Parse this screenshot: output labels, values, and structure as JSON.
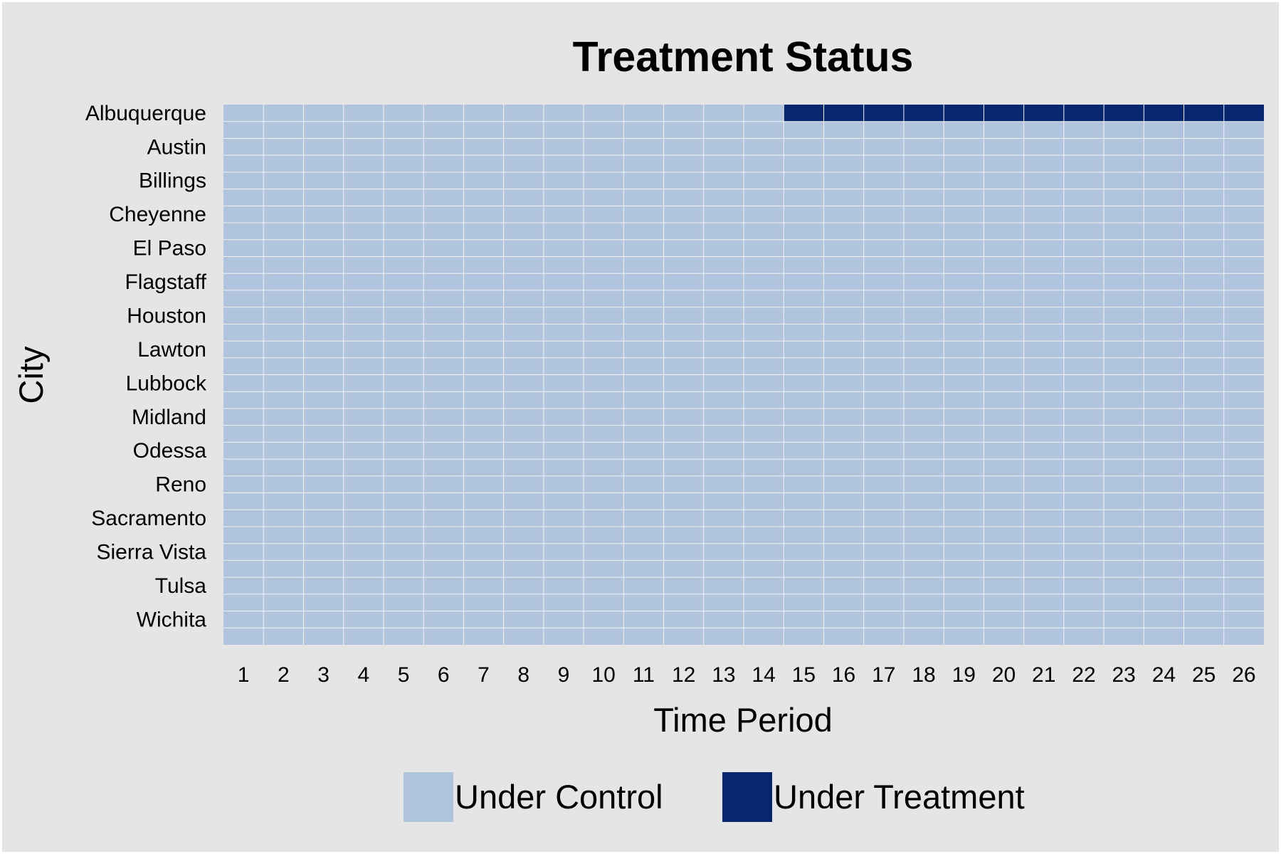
{
  "chart_data": {
    "type": "heatmap",
    "title": "Treatment Status",
    "xlabel": "Time Period",
    "ylabel": "City",
    "x": [
      1,
      2,
      3,
      4,
      5,
      6,
      7,
      8,
      9,
      10,
      11,
      12,
      13,
      14,
      15,
      16,
      17,
      18,
      19,
      20,
      21,
      22,
      23,
      24,
      25,
      26
    ],
    "rows": [
      {
        "label": "Albuquerque",
        "treated_from": 15
      },
      {
        "label": "",
        "treated_from": null
      },
      {
        "label": "Austin",
        "treated_from": null
      },
      {
        "label": "",
        "treated_from": null
      },
      {
        "label": "Billings",
        "treated_from": null
      },
      {
        "label": "",
        "treated_from": null
      },
      {
        "label": "Cheyenne",
        "treated_from": null
      },
      {
        "label": "",
        "treated_from": null
      },
      {
        "label": "El Paso",
        "treated_from": null
      },
      {
        "label": "",
        "treated_from": null
      },
      {
        "label": "Flagstaff",
        "treated_from": null
      },
      {
        "label": "",
        "treated_from": null
      },
      {
        "label": "Houston",
        "treated_from": null
      },
      {
        "label": "",
        "treated_from": null
      },
      {
        "label": "Lawton",
        "treated_from": null
      },
      {
        "label": "",
        "treated_from": null
      },
      {
        "label": "Lubbock",
        "treated_from": null
      },
      {
        "label": "",
        "treated_from": null
      },
      {
        "label": "Midland",
        "treated_from": null
      },
      {
        "label": "",
        "treated_from": null
      },
      {
        "label": "Odessa",
        "treated_from": null
      },
      {
        "label": "",
        "treated_from": null
      },
      {
        "label": "Reno",
        "treated_from": null
      },
      {
        "label": "",
        "treated_from": null
      },
      {
        "label": "Sacramento",
        "treated_from": null
      },
      {
        "label": "",
        "treated_from": null
      },
      {
        "label": "Sierra Vista",
        "treated_from": null
      },
      {
        "label": "",
        "treated_from": null
      },
      {
        "label": "Tulsa",
        "treated_from": null
      },
      {
        "label": "",
        "treated_from": null
      },
      {
        "label": "Wichita",
        "treated_from": null
      },
      {
        "label": "",
        "treated_from": null
      }
    ],
    "legend": [
      {
        "label": "Under Control",
        "color": "#b0c4de"
      },
      {
        "label": "Under Treatment",
        "color": "#06266f"
      }
    ],
    "legend_position": "bottom",
    "colors": {
      "panel_background": "#e5e5e5",
      "grid_line": "#f2f2f2",
      "control": "#b0c4de",
      "treatment": "#06266f"
    }
  }
}
